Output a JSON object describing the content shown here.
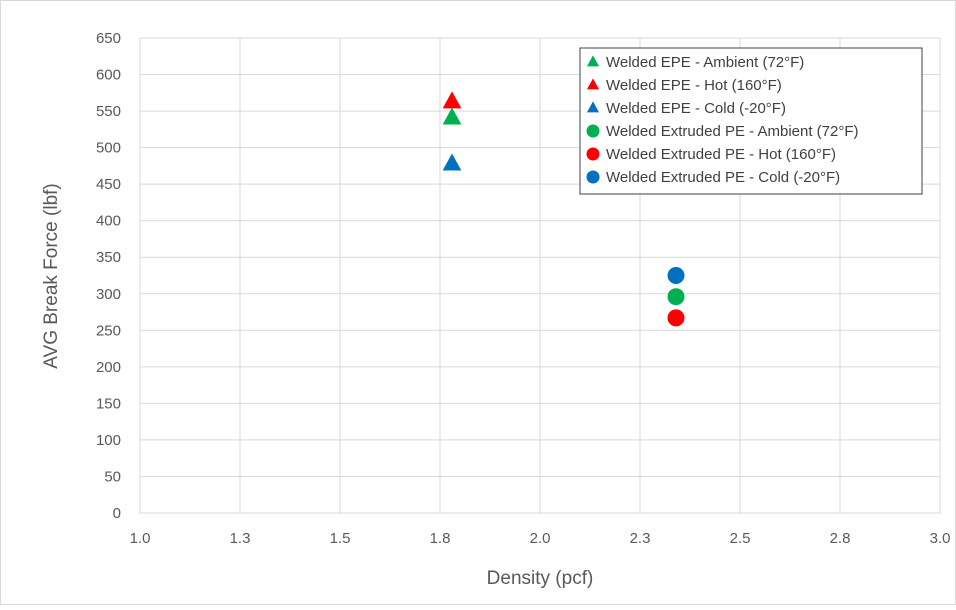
{
  "chart_data": {
    "type": "scatter",
    "xlabel": "Density (pcf)",
    "ylabel": "AVG Break Force (lbf)",
    "xlim": [
      1.0,
      3.0
    ],
    "ylim": [
      0,
      650
    ],
    "x_ticks": [
      "1.0",
      "1.3",
      "1.5",
      "1.8",
      "2.0",
      "2.3",
      "2.5",
      "2.8",
      "3.0"
    ],
    "x_tick_values": [
      1.0,
      1.25,
      1.5,
      1.75,
      2.0,
      2.25,
      2.5,
      2.75,
      3.0
    ],
    "y_ticks": [
      "0",
      "50",
      "100",
      "150",
      "200",
      "250",
      "300",
      "350",
      "400",
      "450",
      "500",
      "550",
      "600",
      "650"
    ],
    "y_tick_values": [
      0,
      50,
      100,
      150,
      200,
      250,
      300,
      350,
      400,
      450,
      500,
      550,
      600,
      650
    ],
    "grid": true,
    "legend_position": "top-right",
    "series": [
      {
        "name": "Welded EPE - Ambient (72°F)",
        "marker": "triangle",
        "color": "#00B050",
        "x": [
          1.78
        ],
        "y": [
          541
        ]
      },
      {
        "name": "Welded EPE - Hot (160°F)",
        "marker": "triangle",
        "color": "#FF0000",
        "x": [
          1.78
        ],
        "y": [
          563
        ]
      },
      {
        "name": "Welded EPE - Cold (-20°F)",
        "marker": "triangle",
        "color": "#0070C0",
        "x": [
          1.78
        ],
        "y": [
          478
        ]
      },
      {
        "name": "Welded Extruded PE - Ambient (72°F)",
        "marker": "circle",
        "color": "#00B050",
        "x": [
          2.34
        ],
        "y": [
          296
        ]
      },
      {
        "name": "Welded Extruded PE - Hot (160°F)",
        "marker": "circle",
        "color": "#FF0000",
        "x": [
          2.34
        ],
        "y": [
          267
        ]
      },
      {
        "name": "Welded Extruded PE - Cold (-20°F)",
        "marker": "circle",
        "color": "#0070C0",
        "x": [
          2.34
        ],
        "y": [
          325
        ]
      }
    ]
  }
}
